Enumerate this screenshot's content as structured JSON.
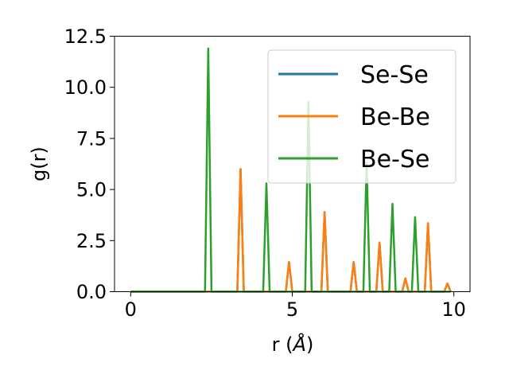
{
  "chart_data": {
    "type": "line",
    "xlabel": "r (",
    "xlabel_unit": "Å",
    "xlabel_close": ")",
    "ylabel": "g(r)",
    "xlim": [
      -0.5,
      10.5
    ],
    "ylim": [
      0,
      12.5
    ],
    "x_ticks": [
      0,
      5,
      10
    ],
    "x_tick_labels": [
      "0",
      "5",
      "10"
    ],
    "y_ticks": [
      0,
      2.5,
      5,
      7.5,
      10,
      12.5
    ],
    "y_tick_labels": [
      "0.0",
      "2.5",
      "5.0",
      "7.5",
      "10.0",
      "12.5"
    ],
    "grid": false,
    "legend_position": "top-right",
    "peak_half_width": 0.1,
    "r_max": 9.9,
    "series": [
      {
        "name": "Se-Se",
        "color": "#1f77b4",
        "peaks": [
          [
            3.4,
            6.0
          ],
          [
            4.9,
            1.45
          ],
          [
            6.0,
            3.9
          ],
          [
            6.9,
            1.45
          ],
          [
            7.7,
            2.4
          ],
          [
            8.5,
            0.65
          ],
          [
            9.2,
            3.35
          ],
          [
            9.8,
            0.4
          ]
        ]
      },
      {
        "name": "Be-Be",
        "color": "#ff7f0e",
        "peaks": [
          [
            3.4,
            6.0
          ],
          [
            4.9,
            1.45
          ],
          [
            6.0,
            3.9
          ],
          [
            6.9,
            1.45
          ],
          [
            7.7,
            2.4
          ],
          [
            8.5,
            0.65
          ],
          [
            9.2,
            3.35
          ],
          [
            9.8,
            0.4
          ]
        ]
      },
      {
        "name": "Be-Se",
        "color": "#2ca02c",
        "peaks": [
          [
            2.4,
            11.9
          ],
          [
            4.2,
            5.3
          ],
          [
            5.5,
            9.3
          ],
          [
            7.3,
            6.3
          ],
          [
            8.1,
            4.3
          ],
          [
            8.8,
            3.65
          ]
        ]
      }
    ]
  }
}
